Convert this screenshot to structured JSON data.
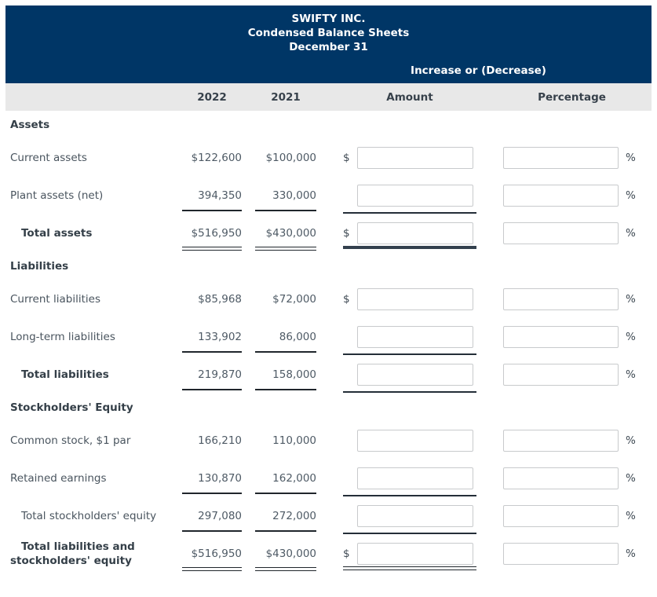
{
  "header": {
    "company": "SWIFTY INC.",
    "report_title": "Condensed Balance Sheets",
    "report_date": "December 31",
    "change_group_label": "Increase or (Decrease)"
  },
  "columns": {
    "year_2022": "2022",
    "year_2021": "2021",
    "amount": "Amount",
    "percentage": "Percentage"
  },
  "symbols": {
    "dollar": "$",
    "percent": "%"
  },
  "colors": {
    "header_navy": "#003666",
    "column_row_gray": "#e8e8e8"
  },
  "sections": [
    {
      "title": "Assets",
      "rows": [
        {
          "label": "Current assets",
          "v2022": "$122,600",
          "v2021": "$100,000",
          "amount_input": "",
          "pct_input": ""
        },
        {
          "label": "Plant assets (net)",
          "v2022": "394,350",
          "v2021": "330,000",
          "amount_input": "",
          "pct_input": ""
        },
        {
          "label": "Total assets",
          "v2022": "$516,950",
          "v2021": "$430,000",
          "amount_input": "",
          "pct_input": ""
        }
      ]
    },
    {
      "title": "Liabilities",
      "rows": [
        {
          "label": "Current liabilities",
          "v2022": "$85,968",
          "v2021": "$72,000",
          "amount_input": "",
          "pct_input": ""
        },
        {
          "label": "Long-term liabilities",
          "v2022": "133,902",
          "v2021": "86,000",
          "amount_input": "",
          "pct_input": ""
        },
        {
          "label": "Total liabilities",
          "v2022": "219,870",
          "v2021": "158,000",
          "amount_input": "",
          "pct_input": ""
        }
      ]
    },
    {
      "title": "Stockholders' Equity",
      "rows": [
        {
          "label": "Common stock, $1 par",
          "v2022": "166,210",
          "v2021": "110,000",
          "amount_input": "",
          "pct_input": ""
        },
        {
          "label": "Retained earnings",
          "v2022": "130,870",
          "v2021": "162,000",
          "amount_input": "",
          "pct_input": ""
        },
        {
          "label": "Total stockholders' equity",
          "v2022": "297,080",
          "v2021": "272,000",
          "amount_input": "",
          "pct_input": ""
        },
        {
          "label": "Total liabilities and stockholders' equity",
          "v2022": "$516,950",
          "v2021": "$430,000",
          "amount_input": "",
          "pct_input": ""
        }
      ]
    }
  ]
}
